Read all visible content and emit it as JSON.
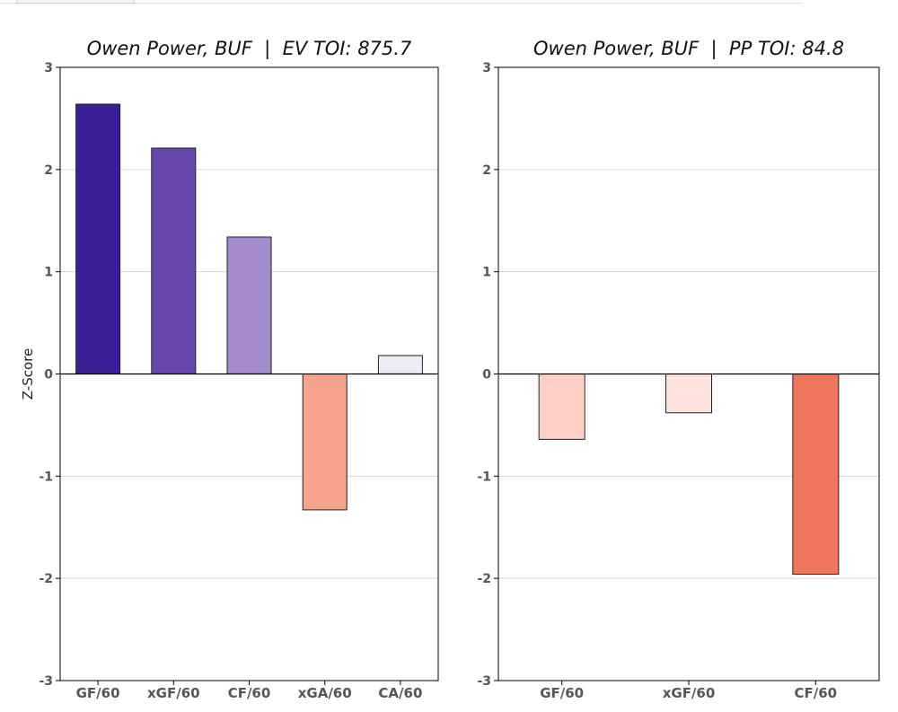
{
  "chart_data": [
    {
      "type": "bar",
      "title": "Owen Power, BUF  |  EV TOI: 875.7",
      "ylabel": "Z-Score",
      "xlabel": "",
      "ylim": [
        -3,
        3
      ],
      "yticks": [
        -3,
        -2,
        -1,
        0,
        1,
        2,
        3
      ],
      "grid": true,
      "categories": [
        "GF/60",
        "xGF/60",
        "CF/60",
        "xGA/60",
        "CA/60"
      ],
      "values": [
        2.64,
        2.21,
        1.34,
        -1.33,
        0.18
      ],
      "colors": [
        "#3b1f98",
        "#6747ac",
        "#a48ccc",
        "#f7a28a",
        "#eeebf5"
      ]
    },
    {
      "type": "bar",
      "title": "Owen Power, BUF  |  PP TOI: 84.8",
      "ylabel": "",
      "xlabel": "",
      "ylim": [
        -3,
        3
      ],
      "yticks": [
        -3,
        -2,
        -1,
        0,
        1,
        2,
        3
      ],
      "grid": true,
      "categories": [
        "GF/60",
        "xGF/60",
        "CF/60"
      ],
      "values": [
        -0.64,
        -0.38,
        -1.96
      ],
      "colors": [
        "#fdd0c3",
        "#fde3dc",
        "#ed765c"
      ]
    }
  ]
}
